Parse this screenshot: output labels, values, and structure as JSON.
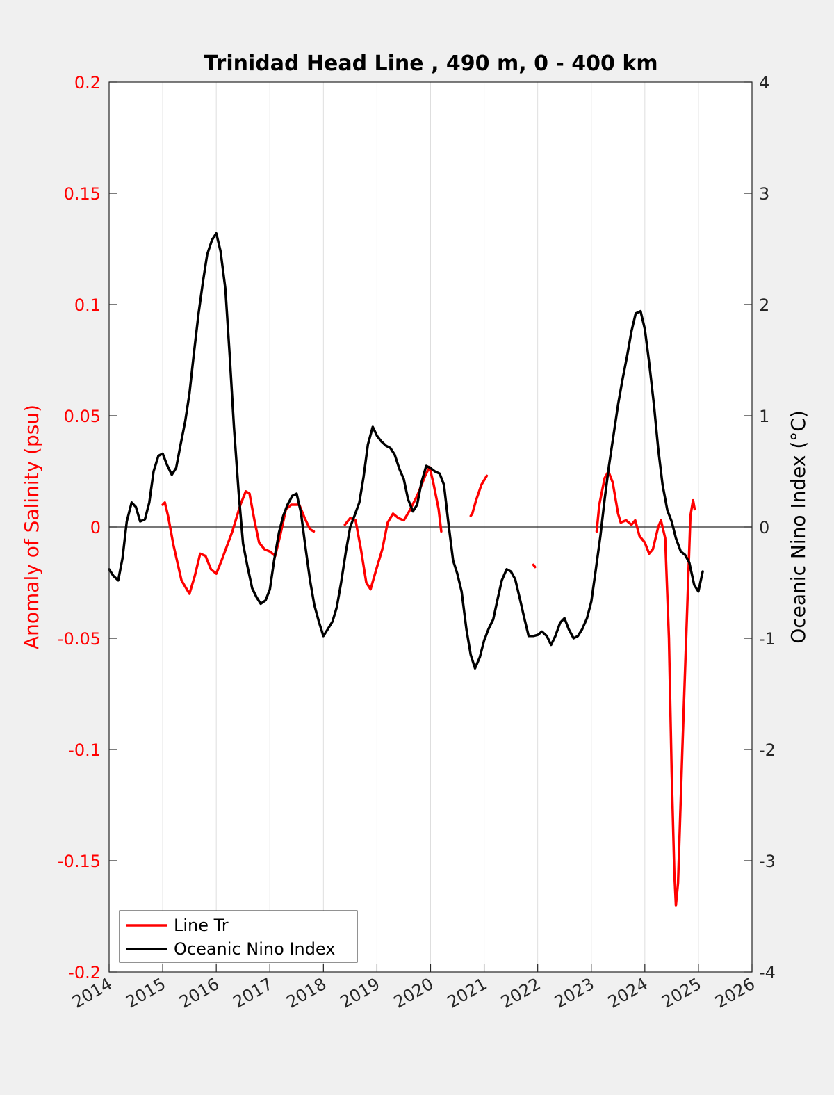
{
  "chart_data": {
    "type": "line",
    "title": "Trinidad Head Line , 490 m, 0 - 400 km",
    "ylabel_left": "Anomaly of Salinity (psu)",
    "ylabel_right": "Oceanic Nino Index (°C)",
    "xlabel": "",
    "xlim": [
      2014,
      2026
    ],
    "ylim_left": [
      -0.2,
      0.2
    ],
    "ylim_right": [
      -4,
      4
    ],
    "x_ticks": [
      "2014",
      "2015",
      "2016",
      "2017",
      "2018",
      "2019",
      "2020",
      "2021",
      "2022",
      "2023",
      "2024",
      "2025",
      "2026"
    ],
    "y_left_ticks": [
      "0.2",
      "0.15",
      "0.1",
      "0.05",
      "0",
      "-0.05",
      "-0.1",
      "-0.15",
      "-0.2"
    ],
    "y_right_ticks": [
      "4",
      "3",
      "2",
      "1",
      "0",
      "-1",
      "-2",
      "-3",
      "-4"
    ],
    "grid": "vertical",
    "zero_line": true,
    "legend_position": "bottom-left",
    "colors": {
      "salinity": "#ff0000",
      "oni": "#000000",
      "background": "#f0f0f0",
      "plot_area": "#ffffff"
    },
    "series": [
      {
        "name": "Line Tr",
        "axis": "left",
        "color": "#ff0000",
        "segments": [
          [
            [
              2015.0,
              0.01
            ],
            [
              2015.04,
              0.011
            ],
            [
              2015.1,
              0.005
            ],
            [
              2015.2,
              -0.008
            ],
            [
              2015.35,
              -0.024
            ],
            [
              2015.5,
              -0.03
            ],
            [
              2015.6,
              -0.022
            ],
            [
              2015.7,
              -0.012
            ],
            [
              2015.8,
              -0.013
            ],
            [
              2015.9,
              -0.019
            ],
            [
              2016.0,
              -0.021
            ],
            [
              2016.1,
              -0.015
            ],
            [
              2016.3,
              -0.002
            ],
            [
              2016.45,
              0.01
            ],
            [
              2016.55,
              0.016
            ],
            [
              2016.62,
              0.015
            ],
            [
              2016.72,
              0.002
            ],
            [
              2016.8,
              -0.007
            ],
            [
              2016.9,
              -0.01
            ],
            [
              2017.0,
              -0.011
            ],
            [
              2017.1,
              -0.013
            ],
            [
              2017.2,
              -0.003
            ],
            [
              2017.3,
              0.008
            ],
            [
              2017.4,
              0.01
            ],
            [
              2017.55,
              0.01
            ],
            [
              2017.65,
              0.004
            ],
            [
              2017.75,
              -0.001
            ],
            [
              2017.82,
              -0.002
            ]
          ],
          [
            [
              2018.4,
              0.001
            ],
            [
              2018.5,
              0.004
            ],
            [
              2018.6,
              0.003
            ],
            [
              2018.7,
              -0.01
            ],
            [
              2018.8,
              -0.025
            ],
            [
              2018.88,
              -0.028
            ],
            [
              2019.0,
              -0.018
            ],
            [
              2019.1,
              -0.01
            ],
            [
              2019.2,
              0.002
            ],
            [
              2019.3,
              0.006
            ],
            [
              2019.4,
              0.004
            ],
            [
              2019.5,
              0.003
            ],
            [
              2019.6,
              0.007
            ],
            [
              2019.75,
              0.014
            ],
            [
              2019.9,
              0.023
            ],
            [
              2019.98,
              0.027
            ],
            [
              2020.05,
              0.02
            ],
            [
              2020.15,
              0.008
            ],
            [
              2020.2,
              -0.002
            ]
          ],
          [
            [
              2020.75,
              0.005
            ],
            [
              2020.78,
              0.006
            ],
            [
              2020.85,
              0.012
            ],
            [
              2020.95,
              0.019
            ],
            [
              2021.05,
              0.023
            ]
          ],
          [
            [
              2021.92,
              -0.017
            ],
            [
              2021.95,
              -0.018
            ]
          ],
          [
            [
              2023.1,
              -0.002
            ],
            [
              2023.15,
              0.01
            ],
            [
              2023.25,
              0.022
            ],
            [
              2023.32,
              0.025
            ],
            [
              2023.4,
              0.02
            ],
            [
              2023.5,
              0.006
            ],
            [
              2023.55,
              0.002
            ],
            [
              2023.65,
              0.003
            ],
            [
              2023.75,
              0.001
            ],
            [
              2023.82,
              0.003
            ],
            [
              2023.9,
              -0.004
            ],
            [
              2024.0,
              -0.007
            ],
            [
              2024.08,
              -0.012
            ],
            [
              2024.15,
              -0.01
            ],
            [
              2024.25,
              0.0
            ],
            [
              2024.3,
              0.003
            ],
            [
              2024.38,
              -0.005
            ],
            [
              2024.45,
              -0.05
            ],
            [
              2024.5,
              -0.11
            ],
            [
              2024.55,
              -0.155
            ],
            [
              2024.58,
              -0.17
            ],
            [
              2024.62,
              -0.16
            ],
            [
              2024.7,
              -0.1
            ],
            [
              2024.8,
              -0.03
            ],
            [
              2024.85,
              0.005
            ],
            [
              2024.9,
              0.012
            ],
            [
              2024.93,
              0.008
            ]
          ]
        ]
      },
      {
        "name": "Oceanic Nino Index",
        "axis": "right",
        "color": "#000000",
        "segments": [
          [
            [
              2014.0,
              -0.38
            ],
            [
              2014.08,
              -0.44
            ],
            [
              2014.17,
              -0.48
            ],
            [
              2014.25,
              -0.28
            ],
            [
              2014.33,
              0.05
            ],
            [
              2014.42,
              0.22
            ],
            [
              2014.5,
              0.18
            ],
            [
              2014.58,
              0.05
            ],
            [
              2014.67,
              0.07
            ],
            [
              2014.75,
              0.22
            ],
            [
              2014.83,
              0.5
            ],
            [
              2014.92,
              0.64
            ],
            [
              2015.0,
              0.66
            ],
            [
              2015.08,
              0.56
            ],
            [
              2015.17,
              0.47
            ],
            [
              2015.25,
              0.53
            ],
            [
              2015.33,
              0.73
            ],
            [
              2015.42,
              0.95
            ],
            [
              2015.5,
              1.2
            ],
            [
              2015.58,
              1.55
            ],
            [
              2015.67,
              1.92
            ],
            [
              2015.75,
              2.2
            ],
            [
              2015.83,
              2.45
            ],
            [
              2015.92,
              2.58
            ],
            [
              2016.0,
              2.64
            ],
            [
              2016.08,
              2.48
            ],
            [
              2016.17,
              2.14
            ],
            [
              2016.25,
              1.55
            ],
            [
              2016.33,
              0.9
            ],
            [
              2016.42,
              0.3
            ],
            [
              2016.5,
              -0.15
            ],
            [
              2016.58,
              -0.35
            ],
            [
              2016.67,
              -0.55
            ],
            [
              2016.75,
              -0.63
            ],
            [
              2016.83,
              -0.69
            ],
            [
              2016.92,
              -0.66
            ],
            [
              2017.0,
              -0.56
            ],
            [
              2017.08,
              -0.3
            ],
            [
              2017.17,
              -0.05
            ],
            [
              2017.25,
              0.1
            ],
            [
              2017.33,
              0.2
            ],
            [
              2017.42,
              0.28
            ],
            [
              2017.5,
              0.3
            ],
            [
              2017.58,
              0.13
            ],
            [
              2017.67,
              -0.2
            ],
            [
              2017.75,
              -0.48
            ],
            [
              2017.83,
              -0.7
            ],
            [
              2017.92,
              -0.86
            ],
            [
              2018.0,
              -0.98
            ],
            [
              2018.08,
              -0.92
            ],
            [
              2018.17,
              -0.85
            ],
            [
              2018.25,
              -0.72
            ],
            [
              2018.33,
              -0.5
            ],
            [
              2018.42,
              -0.22
            ],
            [
              2018.5,
              0.0
            ],
            [
              2018.58,
              0.1
            ],
            [
              2018.67,
              0.22
            ],
            [
              2018.75,
              0.45
            ],
            [
              2018.83,
              0.74
            ],
            [
              2018.92,
              0.9
            ],
            [
              2019.0,
              0.82
            ],
            [
              2019.08,
              0.77
            ],
            [
              2019.17,
              0.73
            ],
            [
              2019.25,
              0.71
            ],
            [
              2019.33,
              0.65
            ],
            [
              2019.42,
              0.52
            ],
            [
              2019.5,
              0.43
            ],
            [
              2019.58,
              0.25
            ],
            [
              2019.67,
              0.14
            ],
            [
              2019.75,
              0.2
            ],
            [
              2019.83,
              0.4
            ],
            [
              2019.92,
              0.55
            ],
            [
              2020.0,
              0.53
            ],
            [
              2020.08,
              0.5
            ],
            [
              2020.17,
              0.48
            ],
            [
              2020.25,
              0.38
            ],
            [
              2020.33,
              0.05
            ],
            [
              2020.42,
              -0.3
            ],
            [
              2020.5,
              -0.42
            ],
            [
              2020.58,
              -0.58
            ],
            [
              2020.67,
              -0.92
            ],
            [
              2020.75,
              -1.15
            ],
            [
              2020.83,
              -1.27
            ],
            [
              2020.92,
              -1.17
            ],
            [
              2021.0,
              -1.02
            ],
            [
              2021.08,
              -0.92
            ],
            [
              2021.17,
              -0.83
            ],
            [
              2021.25,
              -0.65
            ],
            [
              2021.33,
              -0.48
            ],
            [
              2021.42,
              -0.38
            ],
            [
              2021.5,
              -0.4
            ],
            [
              2021.58,
              -0.47
            ],
            [
              2021.67,
              -0.65
            ],
            [
              2021.75,
              -0.82
            ],
            [
              2021.83,
              -0.98
            ],
            [
              2021.92,
              -0.98
            ],
            [
              2022.0,
              -0.97
            ],
            [
              2022.08,
              -0.94
            ],
            [
              2022.17,
              -0.98
            ],
            [
              2022.25,
              -1.06
            ],
            [
              2022.33,
              -0.98
            ],
            [
              2022.42,
              -0.86
            ],
            [
              2022.5,
              -0.82
            ],
            [
              2022.58,
              -0.92
            ],
            [
              2022.67,
              -1.0
            ],
            [
              2022.75,
              -0.98
            ],
            [
              2022.83,
              -0.92
            ],
            [
              2022.92,
              -0.82
            ],
            [
              2023.0,
              -0.67
            ],
            [
              2023.08,
              -0.4
            ],
            [
              2023.17,
              -0.08
            ],
            [
              2023.25,
              0.25
            ],
            [
              2023.33,
              0.55
            ],
            [
              2023.42,
              0.84
            ],
            [
              2023.5,
              1.1
            ],
            [
              2023.58,
              1.32
            ],
            [
              2023.67,
              1.54
            ],
            [
              2023.75,
              1.76
            ],
            [
              2023.83,
              1.92
            ],
            [
              2023.92,
              1.94
            ],
            [
              2024.0,
              1.78
            ],
            [
              2024.08,
              1.48
            ],
            [
              2024.17,
              1.1
            ],
            [
              2024.25,
              0.7
            ],
            [
              2024.33,
              0.38
            ],
            [
              2024.42,
              0.15
            ],
            [
              2024.5,
              0.05
            ],
            [
              2024.58,
              -0.1
            ],
            [
              2024.67,
              -0.22
            ],
            [
              2024.75,
              -0.25
            ],
            [
              2024.83,
              -0.32
            ],
            [
              2024.92,
              -0.52
            ],
            [
              2025.0,
              -0.58
            ],
            [
              2025.08,
              -0.4
            ]
          ]
        ]
      }
    ]
  }
}
